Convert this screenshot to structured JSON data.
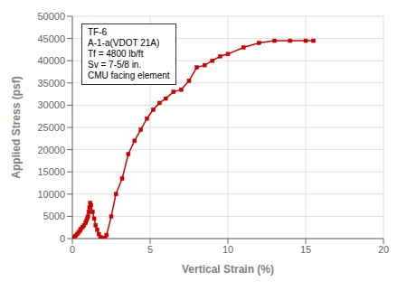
{
  "chart_data": {
    "type": "line",
    "x": [
      0.0,
      0.1,
      0.2,
      0.3,
      0.4,
      0.5,
      0.55,
      0.65,
      0.75,
      0.85,
      0.9,
      0.95,
      1.0,
      1.05,
      1.1,
      1.15,
      1.2,
      1.3,
      1.4,
      1.5,
      1.6,
      1.7,
      1.8,
      1.9,
      2.0,
      2.1,
      2.2,
      2.5,
      2.8,
      3.2,
      3.6,
      4.0,
      4.4,
      4.8,
      5.2,
      5.6,
      6.0,
      6.5,
      7.0,
      7.5,
      8.0,
      8.5,
      9.0,
      9.5,
      10.0,
      11.0,
      12.0,
      13.0,
      14.0,
      15.0,
      15.5
    ],
    "values": [
      0,
      300,
      600,
      1000,
      1400,
      1800,
      2200,
      2600,
      3000,
      3500,
      4000,
      4500,
      5000,
      6000,
      7000,
      8000,
      7500,
      6000,
      4500,
      3000,
      2000,
      1000,
      300,
      100,
      0,
      200,
      800,
      5000,
      10000,
      13500,
      19000,
      22000,
      24500,
      27000,
      29000,
      30500,
      31500,
      33000,
      33500,
      35500,
      38500,
      39000,
      40000,
      41000,
      41500,
      43000,
      44000,
      44500,
      44500,
      44500,
      44500
    ],
    "color": "#cc0000",
    "marker": "square",
    "xlabel": "Vertical Strain (%)",
    "ylabel": "Applied Stress (psf)",
    "xlim": [
      0,
      20
    ],
    "ylim": [
      0,
      50000
    ],
    "xticks": [
      0,
      5,
      10,
      15,
      20
    ],
    "yticks": [
      0,
      5000,
      10000,
      15000,
      20000,
      25000,
      30000,
      35000,
      40000,
      45000,
      50000
    ],
    "annotations": [
      "TF-6",
      "A-1-a(VDOT 21A)",
      "Tf = 4800 lb/ft",
      "Sv = 7-5/8 in.",
      "CMU facing element"
    ],
    "grid": true
  }
}
